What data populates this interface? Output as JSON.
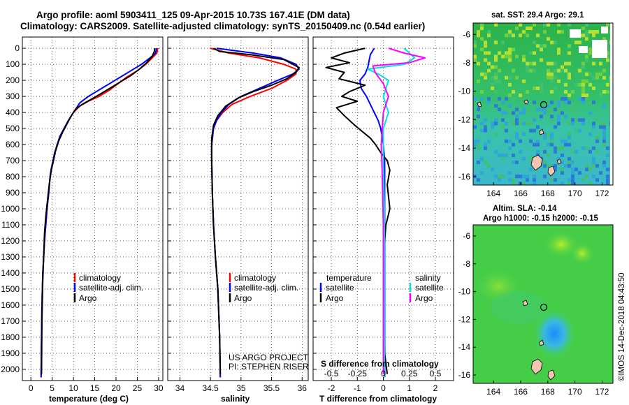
{
  "title": {
    "line1": "Argo profile: aoml 5903411_125 09-Apr-2015 10.73S 167.41E (DM data)",
    "line2": "Climatology: CARS2009. Satellite-adjusted climatology: synTS_20150409.nc (0.54d earlier)"
  },
  "colors": {
    "climatology": "#ff0000",
    "satellite": "#0000ff",
    "argo": "#000000",
    "sat_t_cyan": "#00e0e0",
    "argo_s_magenta": "#ff00ff"
  },
  "depth_ticks": [
    "0",
    "100",
    "200",
    "300",
    "400",
    "500",
    "600",
    "700",
    "800",
    "900",
    "1000",
    "1100",
    "1200",
    "1300",
    "1400",
    "1500",
    "1600",
    "1700",
    "1800",
    "1900",
    "2000"
  ],
  "temp_panel": {
    "xlabel": "temperature (deg C)",
    "xticks": [
      "0",
      "5",
      "10",
      "15",
      "20",
      "25",
      "30"
    ],
    "legend": [
      "climatology",
      "satellite-adj. clim.",
      "Argo"
    ]
  },
  "sal_panel": {
    "xlabel": "salinity",
    "xticks": [
      "34",
      "34.5",
      "35",
      "35.5",
      "36"
    ],
    "legend": [
      "climatology",
      "satellite-adj. clim.",
      "Argo"
    ],
    "credit1": "US ARGO PROJECT",
    "credit2": "PI: STEPHEN RISER"
  },
  "diff_panel": {
    "xlabel": "T difference from climatology",
    "top_label": "S difference from climatology",
    "t_xticks": [
      "-2",
      "-1",
      "0",
      "1",
      "2"
    ],
    "s_xticks": [
      "-0.5",
      "-0.25",
      "0",
      "0.25",
      "0.5"
    ],
    "legend_t_head": "temperature",
    "legend_s_head": "salinity",
    "legend_sat": "satellite",
    "legend_argo": "Argo"
  },
  "map_sst": {
    "title": "sat. SST: 29.4 Argo: 29.1",
    "yticks": [
      "-6",
      "-8",
      "-10",
      "-12",
      "-14",
      "-16"
    ],
    "xticks": [
      "164",
      "166",
      "168",
      "170",
      "172"
    ]
  },
  "map_sla": {
    "title1": "Altim. SLA: -0.14",
    "title2": "Argo h1000: -0.15 h2000: -0.15",
    "yticks": [
      "-6",
      "-8",
      "-10",
      "-12",
      "-14",
      "-16"
    ],
    "xticks": [
      "164",
      "166",
      "168",
      "170",
      "172"
    ]
  },
  "imos_stamp": "©IMOS 14-Dec-2018 04:43:50",
  "chart_data": [
    {
      "type": "line",
      "xlabel": "temperature (deg C)",
      "ylabel": "",
      "xlim": [
        -2,
        31
      ],
      "ylim": [
        2050,
        0
      ],
      "series": [
        {
          "name": "climatology",
          "x": [
            29.8,
            29.6,
            28.5,
            27.0,
            25.0,
            22.5,
            20.5,
            18.5,
            16.0,
            13.5,
            11.5,
            10.0,
            8.8,
            7.8,
            6.8,
            6.2,
            5.6,
            5.2,
            4.8,
            4.5,
            4.2,
            3.8,
            3.5,
            3.2,
            3.0,
            2.8,
            2.6,
            2.5,
            2.4
          ],
          "y": [
            0,
            30,
            60,
            100,
            140,
            180,
            220,
            260,
            300,
            330,
            360,
            400,
            450,
            500,
            550,
            600,
            650,
            700,
            750,
            800,
            900,
            1000,
            1100,
            1200,
            1300,
            1400,
            1600,
            1800,
            2050
          ]
        },
        {
          "name": "satellite-adj. clim.",
          "x": [
            29.5,
            29.3,
            28.0,
            26.0,
            23.5,
            21.0,
            18.5,
            16.0,
            13.5,
            11.5,
            10.0,
            8.8,
            7.8,
            6.8,
            6.2,
            5.6,
            5.2,
            4.8,
            4.5,
            4.2,
            3.8,
            3.5,
            3.2,
            3.0,
            2.8,
            2.6,
            2.5,
            2.4
          ],
          "y": [
            0,
            30,
            60,
            100,
            140,
            180,
            220,
            260,
            300,
            340,
            400,
            450,
            500,
            550,
            600,
            650,
            700,
            750,
            800,
            900,
            1000,
            1100,
            1200,
            1300,
            1400,
            1600,
            1800,
            2050
          ]
        },
        {
          "name": "Argo",
          "x": [
            29.1,
            29.0,
            28.5,
            27.2,
            25.5,
            23.5,
            21.0,
            18.5,
            16.0,
            14.0,
            12.0,
            10.5,
            9.5,
            8.5,
            7.5,
            6.5,
            5.8,
            5.3,
            4.8,
            4.3,
            3.9,
            3.5,
            3.2,
            3.0,
            2.8,
            2.6,
            2.5
          ],
          "y": [
            0,
            20,
            50,
            90,
            130,
            170,
            210,
            250,
            290,
            320,
            350,
            380,
            420,
            470,
            520,
            580,
            640,
            700,
            760,
            850,
            950,
            1050,
            1150,
            1300,
            1450,
            1700,
            2030
          ]
        }
      ]
    },
    {
      "type": "line",
      "xlabel": "salinity",
      "ylabel": "",
      "xlim": [
        33.8,
        36.1
      ],
      "ylim": [
        2050,
        0
      ],
      "series": [
        {
          "name": "climatology",
          "x": [
            34.5,
            34.8,
            35.3,
            35.7,
            35.9,
            35.9,
            35.75,
            35.5,
            35.15,
            34.85,
            34.7,
            34.6,
            34.55,
            34.52,
            34.52,
            34.53,
            34.55,
            34.58,
            34.62,
            34.65,
            34.66
          ],
          "y": [
            0,
            30,
            60,
            100,
            130,
            160,
            200,
            250,
            300,
            350,
            400,
            450,
            500,
            600,
            700,
            900,
            1100,
            1300,
            1500,
            1800,
            2050
          ]
        },
        {
          "name": "satellite-adj. clim.",
          "x": [
            34.6,
            35.2,
            35.65,
            35.9,
            35.95,
            35.85,
            35.6,
            35.3,
            35.0,
            34.8,
            34.68,
            34.6,
            34.55,
            34.52,
            34.52,
            34.53,
            34.55,
            34.58,
            34.62,
            34.65,
            34.66
          ],
          "y": [
            0,
            30,
            60,
            100,
            130,
            160,
            200,
            250,
            300,
            350,
            400,
            450,
            500,
            600,
            700,
            900,
            1100,
            1300,
            1500,
            1800,
            2050
          ]
        },
        {
          "name": "Argo",
          "x": [
            34.55,
            34.65,
            35.15,
            35.7,
            35.95,
            35.9,
            35.75,
            35.5,
            35.2,
            34.95,
            34.75,
            34.62,
            34.55,
            34.52,
            34.52,
            34.53,
            34.55,
            34.58,
            34.62,
            34.65,
            34.66
          ],
          "y": [
            0,
            20,
            40,
            70,
            120,
            150,
            190,
            230,
            270,
            310,
            360,
            420,
            480,
            560,
            700,
            900,
            1100,
            1300,
            1500,
            1800,
            2030
          ]
        }
      ]
    },
    {
      "type": "line",
      "xlabel": "T difference from climatology",
      "ylabel": "",
      "xlim": [
        -2.7,
        2.7
      ],
      "ylim": [
        2050,
        0
      ],
      "series": [
        {
          "name": "T satellite",
          "x": [
            -0.35,
            -0.5,
            -0.55,
            -0.6,
            -0.7,
            -0.9,
            -0.85,
            -0.65,
            -0.5,
            -0.35,
            -0.2,
            -0.1,
            0.0,
            0.05,
            0.05,
            0.05,
            0.05,
            0.05,
            0.05,
            0.05
          ],
          "y": [
            0,
            40,
            80,
            120,
            160,
            200,
            250,
            300,
            350,
            400,
            450,
            500,
            600,
            700,
            800,
            1000,
            1200,
            1500,
            1800,
            2050
          ]
        },
        {
          "name": "T Argo",
          "x": [
            -0.7,
            -1.5,
            -2.0,
            -1.3,
            -2.2,
            -1.5,
            -1.7,
            -0.7,
            -1.3,
            -1.6,
            -1.0,
            -1.8,
            -1.5,
            -1.1,
            -0.8,
            -0.5,
            -0.3,
            -0.1,
            0.15,
            0.25,
            0.15,
            0.25,
            0.1,
            0.0,
            0.0,
            0.05,
            0.15
          ],
          "y": [
            0,
            30,
            60,
            90,
            120,
            150,
            190,
            230,
            270,
            300,
            330,
            370,
            420,
            480,
            520,
            560,
            600,
            650,
            700,
            760,
            850,
            1000,
            1100,
            1300,
            1600,
            1900,
            2030
          ]
        },
        {
          "name": "S satellite",
          "x": [
            0.2,
            0.3,
            0.2,
            -0.15,
            -0.05,
            0.05,
            0.0,
            0.05,
            0.0,
            0.0,
            0.01,
            0.01,
            0.01
          ],
          "y": [
            0,
            60,
            100,
            130,
            160,
            200,
            300,
            400,
            500,
            700,
            1000,
            1500,
            2050
          ]
        },
        {
          "name": "S Argo",
          "x": [
            0.05,
            0.2,
            0.4,
            0.25,
            -0.1,
            -0.08,
            0.0,
            0.05,
            0.0,
            -0.02,
            -0.01,
            0.0,
            0.0,
            0.0
          ],
          "y": [
            0,
            30,
            60,
            90,
            110,
            150,
            220,
            300,
            400,
            600,
            800,
            1100,
            1500,
            2030
          ]
        }
      ]
    }
  ]
}
